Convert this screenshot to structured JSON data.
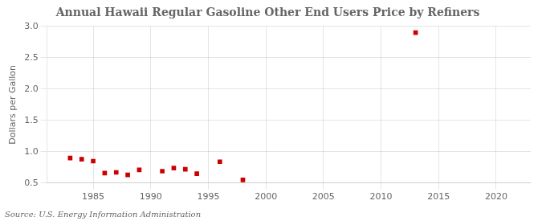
{
  "chart_data": {
    "type": "scatter",
    "title": "Annual Hawaii Regular Gasoline Other End Users Price by Refiners",
    "y_label": "Dollars per Gallon",
    "annotation": "Source: U.S. Energy Information Administration",
    "x": [
      1983,
      1984,
      1985,
      1986,
      1987,
      1988,
      1989,
      1991,
      1992,
      1993,
      1994,
      1996,
      1998,
      2013
    ],
    "values": [
      0.9,
      0.88,
      0.85,
      0.66,
      0.67,
      0.63,
      0.71,
      0.69,
      0.74,
      0.72,
      0.65,
      0.84,
      0.55,
      2.9
    ],
    "color": "#cc0000",
    "marker": "square",
    "xlim": [
      1981,
      2023
    ],
    "xticks": [
      1985,
      1990,
      1995,
      2000,
      2005,
      2010,
      2015,
      2020
    ],
    "ylim": [
      0.5,
      3.0
    ],
    "yticks": [
      0.5,
      {
        "value": 1.0,
        "label": "1.0"
      },
      1.5,
      {
        "value": 2.0,
        "label": "2.0"
      },
      2.5,
      {
        "value": 3.0,
        "label": "3.0"
      }
    ],
    "grid": true
  }
}
